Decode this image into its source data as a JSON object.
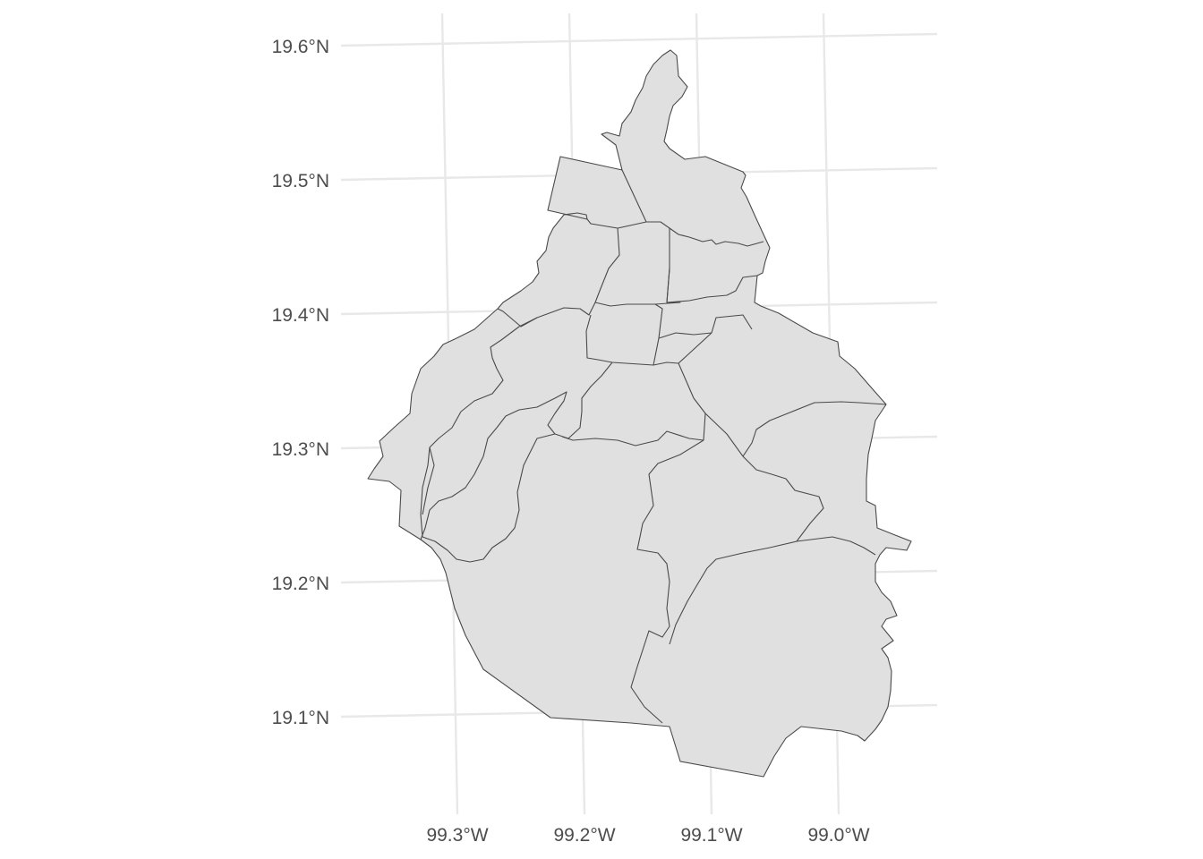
{
  "chart_data": {
    "type": "map",
    "projection": "lat-long graticule, slightly rotated",
    "grid": true,
    "fill_color": "#e0e0e0",
    "border_color": "#4a4a4a",
    "grid_color": "#e8e8e8",
    "y_tick_labels": [
      "19.6°N",
      "19.5°N",
      "19.4°N",
      "19.3°N",
      "19.2°N",
      "19.1°N"
    ],
    "x_tick_labels": [
      "99.3°W",
      "99.2°W",
      "99.1°W",
      "99.0°W"
    ],
    "latitudes": [
      19.6,
      19.5,
      19.4,
      19.3,
      19.2,
      19.1
    ],
    "longitudes": [
      -99.3,
      -99.2,
      -99.1,
      -99.0
    ],
    "region_count": 16
  }
}
